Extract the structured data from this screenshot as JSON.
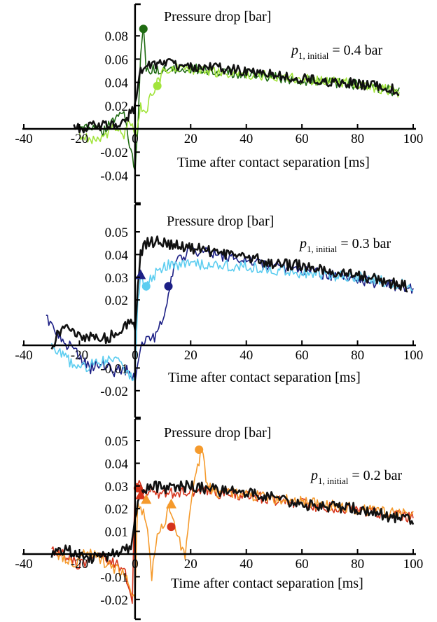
{
  "chart_data": [
    {
      "type": "line",
      "ylabel": "Pressure drop [bar]",
      "xlabel": "Time after contact separation [ms]",
      "annotation": {
        "sym": "p",
        "sub": "1, initial",
        "rest": " = 0.4 bar"
      },
      "xlim": [
        -40,
        100
      ],
      "ylim": [
        -0.06,
        0.1
      ],
      "xticks": [
        "-40",
        "-20",
        "0",
        "20",
        "40",
        "60",
        "80",
        "100"
      ],
      "yticks": [
        "0.08",
        "0.06",
        "0.04",
        "0.02",
        "-0.02",
        "-0.04"
      ],
      "series": [
        {
          "color": "#1f6b12",
          "values": [
            [
              -20,
              0.0
            ],
            [
              -16,
              0.004
            ],
            [
              -12,
              -0.004
            ],
            [
              -8,
              0.008
            ],
            [
              -4,
              0.012
            ],
            [
              -2,
              -0.015
            ],
            [
              0,
              -0.035
            ],
            [
              1,
              0.0
            ],
            [
              2,
              0.06
            ],
            [
              3,
              0.088
            ],
            [
              4,
              0.05
            ],
            [
              6,
              0.052
            ],
            [
              10,
              0.05
            ],
            [
              20,
              0.052
            ],
            [
              40,
              0.047
            ],
            [
              60,
              0.042
            ],
            [
              80,
              0.038
            ],
            [
              95,
              0.032
            ]
          ]
        },
        {
          "color": "#a2e43c",
          "values": [
            [
              -20,
              -0.005
            ],
            [
              -14,
              -0.01
            ],
            [
              -8,
              0.0
            ],
            [
              -4,
              -0.005
            ],
            [
              -2,
              0.01
            ],
            [
              0,
              -0.01
            ],
            [
              2,
              0.02
            ],
            [
              4,
              0.015
            ],
            [
              6,
              0.03
            ],
            [
              8,
              0.04
            ],
            [
              10,
              0.048
            ],
            [
              14,
              0.052
            ],
            [
              20,
              0.05
            ],
            [
              40,
              0.047
            ],
            [
              60,
              0.043
            ],
            [
              80,
              0.039
            ],
            [
              95,
              0.031
            ]
          ]
        },
        {
          "color": "#111111",
          "values": [
            [
              -22,
              0.0
            ],
            [
              -16,
              0.002
            ],
            [
              -10,
              0.003
            ],
            [
              -6,
              0.005
            ],
            [
              -3,
              0.01
            ],
            [
              -1,
              0.015
            ],
            [
              0,
              0.02
            ],
            [
              2,
              0.05
            ],
            [
              4,
              0.055
            ],
            [
              10,
              0.056
            ],
            [
              20,
              0.054
            ],
            [
              30,
              0.052
            ],
            [
              40,
              0.05
            ],
            [
              50,
              0.047
            ],
            [
              60,
              0.043
            ],
            [
              70,
              0.041
            ],
            [
              80,
              0.039
            ],
            [
              90,
              0.035
            ],
            [
              95,
              0.033
            ]
          ]
        }
      ],
      "markers": [
        {
          "shape": "circle",
          "color": "#1f6b12",
          "x": 3,
          "y": 0.086
        },
        {
          "shape": "circle",
          "color": "#a2e43c",
          "x": 8,
          "y": 0.037
        }
      ]
    },
    {
      "type": "line",
      "ylabel": "Pressure drop [bar]",
      "xlabel": "Time after contact separation [ms]",
      "annotation": {
        "sym": "p",
        "sub": "1, initial",
        "rest": " = 0.3 bar"
      },
      "xlim": [
        -40,
        100
      ],
      "ylim": [
        -0.03,
        0.06
      ],
      "xticks": [
        "-40",
        "-20",
        "0",
        "20",
        "40",
        "60",
        "80",
        "100"
      ],
      "yticks": [
        "0.05",
        "0.04",
        "0.03",
        "0.02",
        "-0.01",
        "-0.02"
      ],
      "series": [
        {
          "color": "#1c1f85",
          "values": [
            [
              -32,
              0.012
            ],
            [
              -28,
              0.005
            ],
            [
              -24,
              0.0
            ],
            [
              -20,
              -0.005
            ],
            [
              -16,
              -0.01
            ],
            [
              -12,
              -0.007
            ],
            [
              -8,
              -0.012
            ],
            [
              -4,
              -0.01
            ],
            [
              0,
              -0.015
            ],
            [
              2,
              0.0
            ],
            [
              4,
              0.004
            ],
            [
              6,
              0.002
            ],
            [
              8,
              0.005
            ],
            [
              10,
              0.012
            ],
            [
              12,
              0.022
            ],
            [
              14,
              0.034
            ],
            [
              16,
              0.038
            ],
            [
              20,
              0.042
            ],
            [
              40,
              0.037
            ],
            [
              60,
              0.033
            ],
            [
              80,
              0.029
            ],
            [
              100,
              0.025
            ]
          ]
        },
        {
          "color": "#5ccdf0",
          "values": [
            [
              -30,
              0.0
            ],
            [
              -26,
              -0.005
            ],
            [
              -20,
              -0.01
            ],
            [
              -14,
              -0.008
            ],
            [
              -8,
              -0.005
            ],
            [
              -4,
              -0.01
            ],
            [
              0,
              -0.015
            ],
            [
              1,
              0.02
            ],
            [
              2,
              0.03
            ],
            [
              4,
              0.025
            ],
            [
              6,
              0.03
            ],
            [
              10,
              0.035
            ],
            [
              20,
              0.036
            ],
            [
              40,
              0.035
            ],
            [
              60,
              0.032
            ],
            [
              80,
              0.03
            ],
            [
              100,
              0.026
            ]
          ]
        },
        {
          "color": "#111111",
          "values": [
            [
              -30,
              0.0
            ],
            [
              -26,
              0.008
            ],
            [
              -22,
              0.006
            ],
            [
              -18,
              0.004
            ],
            [
              -14,
              0.005
            ],
            [
              -10,
              0.003
            ],
            [
              -6,
              0.006
            ],
            [
              -2,
              0.01
            ],
            [
              0,
              0.008
            ],
            [
              2,
              0.04
            ],
            [
              4,
              0.045
            ],
            [
              8,
              0.046
            ],
            [
              12,
              0.045
            ],
            [
              20,
              0.043
            ],
            [
              30,
              0.041
            ],
            [
              40,
              0.039
            ],
            [
              50,
              0.036
            ],
            [
              60,
              0.035
            ],
            [
              70,
              0.033
            ],
            [
              80,
              0.031
            ],
            [
              90,
              0.028
            ],
            [
              98,
              0.026
            ]
          ]
        }
      ],
      "markers": [
        {
          "shape": "triangle",
          "color": "#1c1f85",
          "x": 2,
          "y": 0.031
        },
        {
          "shape": "circle",
          "color": "#5ccdf0",
          "x": 4,
          "y": 0.026
        },
        {
          "shape": "circle",
          "color": "#1c1f85",
          "x": 12,
          "y": 0.026
        }
      ]
    },
    {
      "type": "line",
      "ylabel": "Pressure drop [bar]",
      "xlabel": "Time after contact separation [ms]",
      "annotation": {
        "sym": "p",
        "sub": "1, initial",
        "rest": " = 0.2 bar"
      },
      "xlim": [
        -40,
        100
      ],
      "ylim": [
        -0.03,
        0.06
      ],
      "xticks": [
        "-40",
        "-20",
        "0",
        "20",
        "40",
        "60",
        "80",
        "100"
      ],
      "yticks": [
        "0.05",
        "0.04",
        "0.03",
        "0.02",
        "0.01",
        "-0.01",
        "-0.02"
      ],
      "series": [
        {
          "color": "#d6331a",
          "values": [
            [
              -30,
              0.002
            ],
            [
              -26,
              0.0
            ],
            [
              -20,
              -0.005
            ],
            [
              -14,
              0.0
            ],
            [
              -8,
              -0.004
            ],
            [
              -4,
              -0.006
            ],
            [
              -1,
              -0.02
            ],
            [
              0,
              0.03
            ],
            [
              2,
              0.03
            ],
            [
              4,
              0.028
            ],
            [
              10,
              0.026
            ],
            [
              20,
              0.028
            ],
            [
              40,
              0.026
            ],
            [
              60,
              0.022
            ],
            [
              80,
              0.019
            ],
            [
              100,
              0.016
            ]
          ]
        },
        {
          "color": "#f59a2c",
          "values": [
            [
              -28,
              0.0
            ],
            [
              -22,
              -0.004
            ],
            [
              -16,
              0.002
            ],
            [
              -10,
              -0.005
            ],
            [
              -4,
              -0.008
            ],
            [
              0,
              -0.02
            ],
            [
              1,
              0.025
            ],
            [
              2,
              0.02
            ],
            [
              4,
              0.015
            ],
            [
              6,
              -0.01
            ],
            [
              8,
              0.01
            ],
            [
              10,
              0.012
            ],
            [
              12,
              0.02
            ],
            [
              14,
              0.015
            ],
            [
              16,
              0.005
            ],
            [
              18,
              0.0
            ],
            [
              20,
              0.02
            ],
            [
              22,
              0.035
            ],
            [
              24,
              0.046
            ],
            [
              26,
              0.03
            ],
            [
              30,
              0.027
            ],
            [
              40,
              0.026
            ],
            [
              60,
              0.023
            ],
            [
              80,
              0.02
            ],
            [
              100,
              0.017
            ]
          ]
        },
        {
          "color": "#111111",
          "values": [
            [
              -30,
              0.0
            ],
            [
              -26,
              0.002
            ],
            [
              -20,
              0.0
            ],
            [
              -14,
              -0.002
            ],
            [
              -8,
              0.0
            ],
            [
              -4,
              0.001
            ],
            [
              -1,
              0.005
            ],
            [
              0,
              0.015
            ],
            [
              2,
              0.028
            ],
            [
              6,
              0.03
            ],
            [
              12,
              0.029
            ],
            [
              20,
              0.03
            ],
            [
              30,
              0.028
            ],
            [
              40,
              0.027
            ],
            [
              50,
              0.025
            ],
            [
              60,
              0.022
            ],
            [
              70,
              0.021
            ],
            [
              80,
              0.02
            ],
            [
              90,
              0.017
            ],
            [
              100,
              0.015
            ]
          ]
        }
      ],
      "markers": [
        {
          "shape": "triangle",
          "color": "#d6331a",
          "x": 2,
          "y": 0.026
        },
        {
          "shape": "triangle",
          "color": "#f59a2c",
          "x": 4,
          "y": 0.024
        },
        {
          "shape": "circle",
          "color": "#d6331a",
          "x": 1,
          "y": 0.029
        },
        {
          "shape": "triangle",
          "color": "#f59a2c",
          "x": 13,
          "y": 0.022
        },
        {
          "shape": "circle",
          "color": "#d6331a",
          "x": 13,
          "y": 0.012
        },
        {
          "shape": "circle",
          "color": "#f59a2c",
          "x": 23,
          "y": 0.046
        }
      ]
    }
  ]
}
